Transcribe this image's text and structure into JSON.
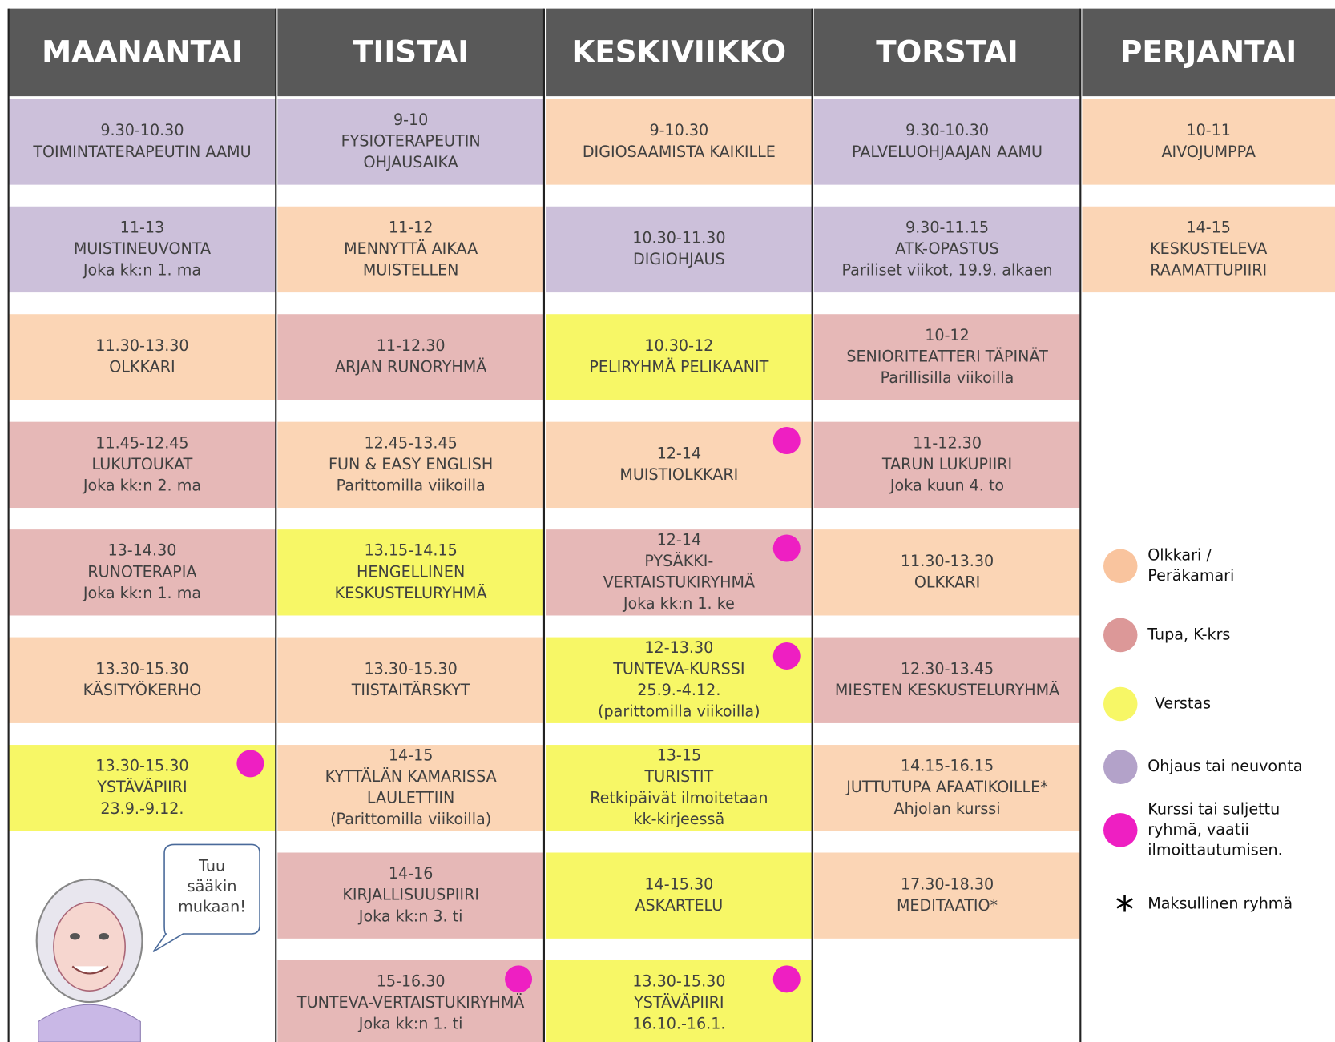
{
  "days": [
    {
      "name": "MAANANTAI",
      "events": [
        {
          "lines": [
            "9.30-10.30",
            "TOIMINTATERAPEUTIN AAMU"
          ],
          "color": "#ccc0da",
          "course": false
        },
        {
          "lines": [
            "11-13",
            "MUISTINEUVONTA",
            "Joka kk:n 1. ma"
          ],
          "color": "#ccc0da",
          "course": false
        },
        {
          "lines": [
            "11.30-13.30",
            "OLKKARI"
          ],
          "color": "#fbd5b5",
          "course": false
        },
        {
          "lines": [
            "11.45-12.45",
            "LUKUTOUKAT",
            "Joka kk:n 2. ma"
          ],
          "color": "#e6b8b7",
          "course": false
        },
        {
          "lines": [
            "13-14.30",
            "RUNOTERAPIA",
            "Joka kk:n 1. ma"
          ],
          "color": "#e6b8b7",
          "course": false
        },
        {
          "lines": [
            "13.30-15.30",
            "KÄSITYÖKERHO"
          ],
          "color": "#fbd5b5",
          "course": false
        },
        {
          "lines": [
            "13.30-15.30",
            "YSTÄVÄPIIRI",
            "23.9.-9.12."
          ],
          "color": "#f7f766",
          "course": true
        }
      ]
    },
    {
      "name": "TIISTAI",
      "events": [
        {
          "lines": [
            "9-10",
            "FYSIOTERAPEUTIN",
            "OHJAUSAIKA"
          ],
          "color": "#ccc0da",
          "course": false
        },
        {
          "lines": [
            "11-12",
            "MENNYTTÄ AIKAA",
            "MUISTELLEN"
          ],
          "color": "#fbd5b5",
          "course": false
        },
        {
          "lines": [
            "11-12.30",
            "ARJAN RUNORYHMÄ"
          ],
          "color": "#e6b8b7",
          "course": false
        },
        {
          "lines": [
            "12.45-13.45",
            "FUN & EASY ENGLISH",
            "Parittomilla viikoilla"
          ],
          "color": "#fbd5b5",
          "course": false
        },
        {
          "lines": [
            "13.15-14.15",
            "HENGELLINEN",
            "KESKUSTELURYHMÄ"
          ],
          "color": "#f7f766",
          "course": false
        },
        {
          "lines": [
            "13.30-15.30",
            "TIISTAITÄRSKYT"
          ],
          "color": "#fbd5b5",
          "course": false
        },
        {
          "lines": [
            "14-15",
            "KYTTÄLÄN KAMARISSA",
            "LAULETTIIN",
            "(Parittomilla viikoilla)"
          ],
          "color": "#fbd5b5",
          "course": false
        },
        {
          "lines": [
            "14-16",
            "KIRJALLISUUSPIIRI",
            "Joka kk:n 3. ti"
          ],
          "color": "#e6b8b7",
          "course": false
        },
        {
          "lines": [
            "15-16.30",
            "TUNTEVA-VERTAISTUKIRYHMÄ",
            "Joka kk:n 1. ti"
          ],
          "color": "#e6b8b7",
          "course": true
        }
      ]
    },
    {
      "name": "KESKIVIIKKO",
      "events": [
        {
          "lines": [
            "9-10.30",
            "DIGIOSAAMISTA KAIKILLE"
          ],
          "color": "#fbd5b5",
          "course": false
        },
        {
          "lines": [
            "10.30-11.30",
            "DIGIOHJAUS"
          ],
          "color": "#ccc0da",
          "course": false
        },
        {
          "lines": [
            "10.30-12",
            "PELIRYHMÄ PELIKAANIT"
          ],
          "color": "#f7f766",
          "course": false
        },
        {
          "lines": [
            "12-14",
            "MUISTIOLKKARI"
          ],
          "color": "#fbd5b5",
          "course": true
        },
        {
          "lines": [
            "12-14",
            "PYSÄKKI-",
            "VERTAISTUKIRYHMÄ",
            "Joka kk:n 1. ke"
          ],
          "color": "#e6b8b7",
          "course": true
        },
        {
          "lines": [
            "12-13.30",
            "TUNTEVA-KURSSI",
            "25.9.-4.12.",
            "(parittomilla viikoilla)"
          ],
          "color": "#f7f766",
          "course": true
        },
        {
          "lines": [
            "13-15",
            "TURISTIT",
            "Retkipäivät ilmoitetaan",
            "kk-kirjeessä"
          ],
          "color": "#f7f766",
          "course": false
        },
        {
          "lines": [
            "14-15.30",
            "ASKARTELU"
          ],
          "color": "#f7f766",
          "course": false
        },
        {
          "lines": [
            "13.30-15.30",
            "YSTÄVÄPIIRI",
            "16.10.-16.1."
          ],
          "color": "#f7f766",
          "course": true
        }
      ]
    },
    {
      "name": "TORSTAI",
      "events": [
        {
          "lines": [
            "9.30-10.30",
            "PALVELUOHJAAJAN AAMU"
          ],
          "color": "#ccc0da",
          "course": false
        },
        {
          "lines": [
            "9.30-11.15",
            "ATK-OPASTUS",
            "Pariliset viikot, 19.9. alkaen"
          ],
          "color": "#ccc0da",
          "course": false
        },
        {
          "lines": [
            "10-12",
            "SENIORITEATTERI TÄPINÄT",
            "Parillisilla viikoilla"
          ],
          "color": "#e6b8b7",
          "course": false
        },
        {
          "lines": [
            "11-12.30",
            "TARUN LUKUPIIRI",
            "Joka kuun 4. to"
          ],
          "color": "#e6b8b7",
          "course": false
        },
        {
          "lines": [
            "11.30-13.30",
            "OLKKARI"
          ],
          "color": "#fbd5b5",
          "course": false
        },
        {
          "lines": [
            "12.30-13.45",
            "MIESTEN KESKUSTELURYHMÄ"
          ],
          "color": "#e6b8b7",
          "course": false
        },
        {
          "lines": [
            "14.15-16.15",
            "JUTTUTUPA AFAATIKOILLE*",
            "Ahjolan kurssi"
          ],
          "color": "#fbd5b5",
          "course": false
        },
        {
          "lines": [
            "17.30-18.30",
            "MEDITAATIO*"
          ],
          "color": "#fbd5b5",
          "course": false
        }
      ]
    },
    {
      "name": "PERJANTAI",
      "events": [
        {
          "lines": [
            "10-11",
            "AIVOJUMPPA"
          ],
          "color": "#fbd5b5",
          "course": false
        },
        {
          "lines": [
            "14-15",
            "KESKUSTELEVA",
            "RAAMATTUPIIRI"
          ],
          "color": "#fbd5b5",
          "course": false
        }
      ]
    }
  ],
  "legend": [
    {
      "color": "#f9c49e",
      "lines": [
        "Olkkari /",
        "Peräkamari"
      ]
    },
    {
      "color": "#dc9898",
      "lines": [
        "Tupa, K-krs"
      ]
    },
    {
      "color": "#f7f766",
      "lines": [
        "Verstas"
      ]
    },
    {
      "color": "#b3a2c9",
      "lines": [
        "Ohjaus tai neuvonta"
      ]
    },
    {
      "color": "#ee1fc2",
      "lines": [
        "Kurssi tai suljettu",
        "ryhmä, vaatii",
        "ilmoittautumisen."
      ]
    },
    {
      "symbol": "*",
      "lines": [
        "Maksullinen ryhmä"
      ]
    }
  ],
  "speech_bubble": [
    "Tuu",
    "sääkin",
    "mukaan!"
  ],
  "course_color": "#ee1fc2"
}
